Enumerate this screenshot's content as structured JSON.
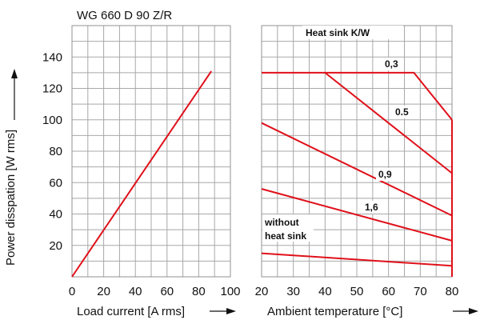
{
  "chart_data": {
    "type": "line",
    "title": "WG 660 D 90 Z/R",
    "ylabel": "Power disspation [W rms]",
    "ylim": [
      0,
      160
    ],
    "y_ticks": [
      "20",
      "40",
      "60",
      "80",
      "100",
      "120",
      "140"
    ],
    "panels": [
      {
        "xlabel": "Load current [A rms]",
        "xlim": [
          0,
          100
        ],
        "x_ticks": [
          "0",
          "20",
          "40",
          "60",
          "80",
          "100"
        ],
        "series": [
          {
            "points": [
              [
                0,
                0
              ],
              [
                88,
                131
              ]
            ]
          }
        ]
      },
      {
        "xlabel": "Ambient temperature [°C]",
        "xlim": [
          20,
          80
        ],
        "x_ticks": [
          "20",
          "30",
          "40",
          "50",
          "60",
          "70",
          "80"
        ],
        "legend_title": "Heat sink K/W",
        "series": [
          {
            "name": "0,3",
            "points": [
              [
                20,
                130
              ],
              [
                68,
                130
              ],
              [
                80,
                100
              ]
            ]
          },
          {
            "name": "0.5",
            "points": [
              [
                40,
                130
              ],
              [
                80,
                66
              ]
            ]
          },
          {
            "name": "0,9",
            "points": [
              [
                20,
                98
              ],
              [
                80,
                39
              ]
            ]
          },
          {
            "name": "1,6",
            "points": [
              [
                20,
                56
              ],
              [
                80,
                23
              ]
            ]
          },
          {
            "name": "without heat sink",
            "points": [
              [
                20,
                15
              ],
              [
                80,
                7
              ]
            ]
          }
        ],
        "vertical_line": {
          "x": 80,
          "y_range": [
            0,
            100
          ]
        }
      }
    ],
    "annotations": {
      "heat_sink_header": "Heat sink K/W",
      "label_03": "0,3",
      "label_05": "0.5",
      "label_09": "0,9",
      "label_16": "1,6",
      "label_without_line1": "without",
      "label_without_line2": "heat sink"
    },
    "colors": {
      "series": "#e0101a",
      "grid": "#a8a8a8"
    }
  }
}
